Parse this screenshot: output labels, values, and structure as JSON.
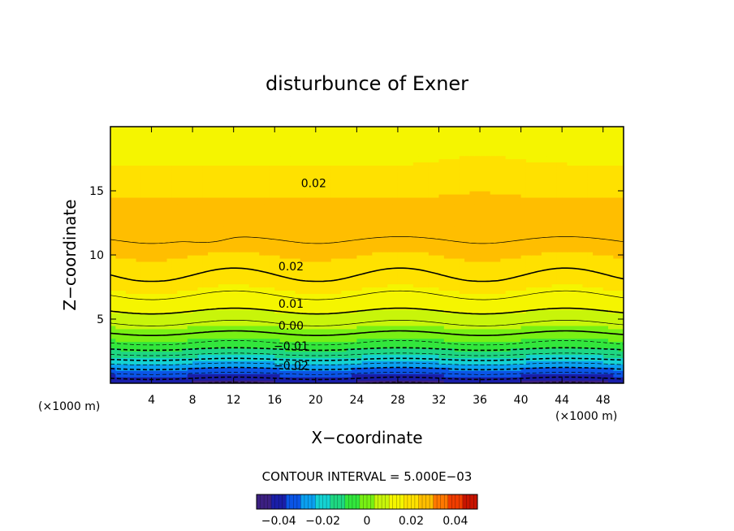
{
  "chart_data": {
    "type": "heatmap",
    "title": "disturbunce of Exner",
    "xlabel": "X−coordinate",
    "ylabel": "Z−coordinate",
    "x_unit_left": "(×1000 m)",
    "x_unit_right": "(×1000 m)",
    "xlim": [
      0,
      50
    ],
    "ylim": [
      0,
      20
    ],
    "x_ticks": [
      4,
      8,
      12,
      16,
      20,
      24,
      28,
      32,
      36,
      40,
      44,
      48
    ],
    "y_ticks": [
      5,
      10,
      15
    ],
    "x_ticklabels": [
      "4",
      "8",
      "12",
      "16",
      "20",
      "24",
      "28",
      "32",
      "36",
      "40",
      "44",
      "48"
    ],
    "y_ticklabels": [
      "5",
      "10",
      "15"
    ],
    "contour_interval_text": "CONTOUR INTERVAL = 5.000E−03",
    "contour_interval": 0.005,
    "colorbar": {
      "range": [
        -0.05,
        0.05
      ],
      "tick_values": [
        -0.04,
        -0.02,
        0,
        0.02,
        0.04
      ],
      "tick_labels": [
        "−0.04",
        "−0.02",
        "0",
        "0.02",
        "0.04"
      ]
    },
    "contour_labels": [
      {
        "text": "0.02",
        "x": 19.8,
        "z": 15.6
      },
      {
        "text": "0.02",
        "x": 17.6,
        "z": 9.1
      },
      {
        "text": "0.01",
        "x": 17.6,
        "z": 6.2
      },
      {
        "text": "0.00",
        "x": 17.6,
        "z": 4.5
      },
      {
        "text": "−0.01",
        "x": 17.6,
        "z": 2.9
      },
      {
        "text": "−0.02",
        "x": 17.6,
        "z": 1.4
      }
    ],
    "grid": false,
    "legend": "colorbar-bottom",
    "colors": [
      "#3c2082",
      "#1a1ea8",
      "#0a55e6",
      "#0aa0f0",
      "#14d2d2",
      "#1ed782",
      "#32e63c",
      "#78f014",
      "#c8f50a",
      "#f5f500",
      "#ffe100",
      "#ffbe00",
      "#ff7800",
      "#f03c00",
      "#c81400"
    ]
  }
}
